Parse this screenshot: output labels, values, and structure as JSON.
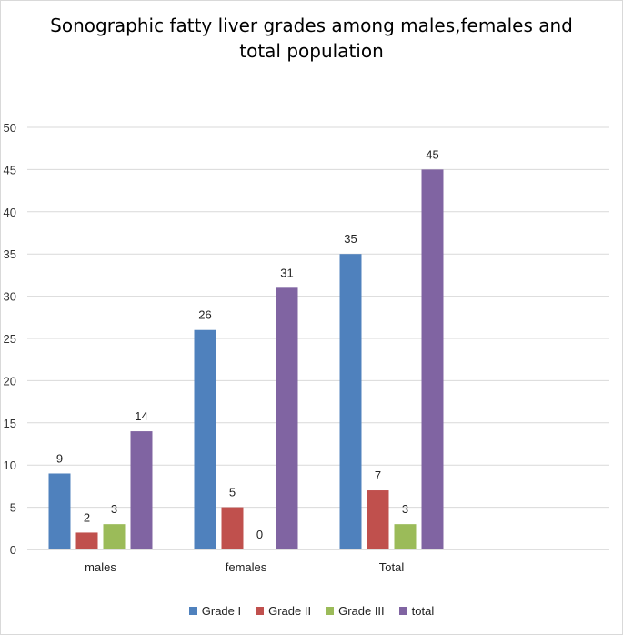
{
  "chart_data": {
    "type": "bar",
    "title": "Sonographic fatty liver grades among males,females and total population",
    "categories": [
      "males",
      "females",
      "Total"
    ],
    "series": [
      {
        "name": "Grade I",
        "color": "#4f81bd",
        "values": [
          9,
          26,
          35
        ]
      },
      {
        "name": "Grade II",
        "color": "#c0504d",
        "values": [
          2,
          5,
          7
        ]
      },
      {
        "name": "Grade III",
        "color": "#9bbb59",
        "values": [
          3,
          0,
          3
        ]
      },
      {
        "name": "total",
        "color": "#8064a2",
        "values": [
          14,
          31,
          45
        ]
      }
    ],
    "ylim": [
      0,
      50
    ],
    "yticks": [
      "0",
      "5",
      "10",
      "15",
      "20",
      "25",
      "30",
      "35",
      "40",
      "45",
      "50"
    ],
    "grid": true,
    "legend_position": "bottom"
  }
}
